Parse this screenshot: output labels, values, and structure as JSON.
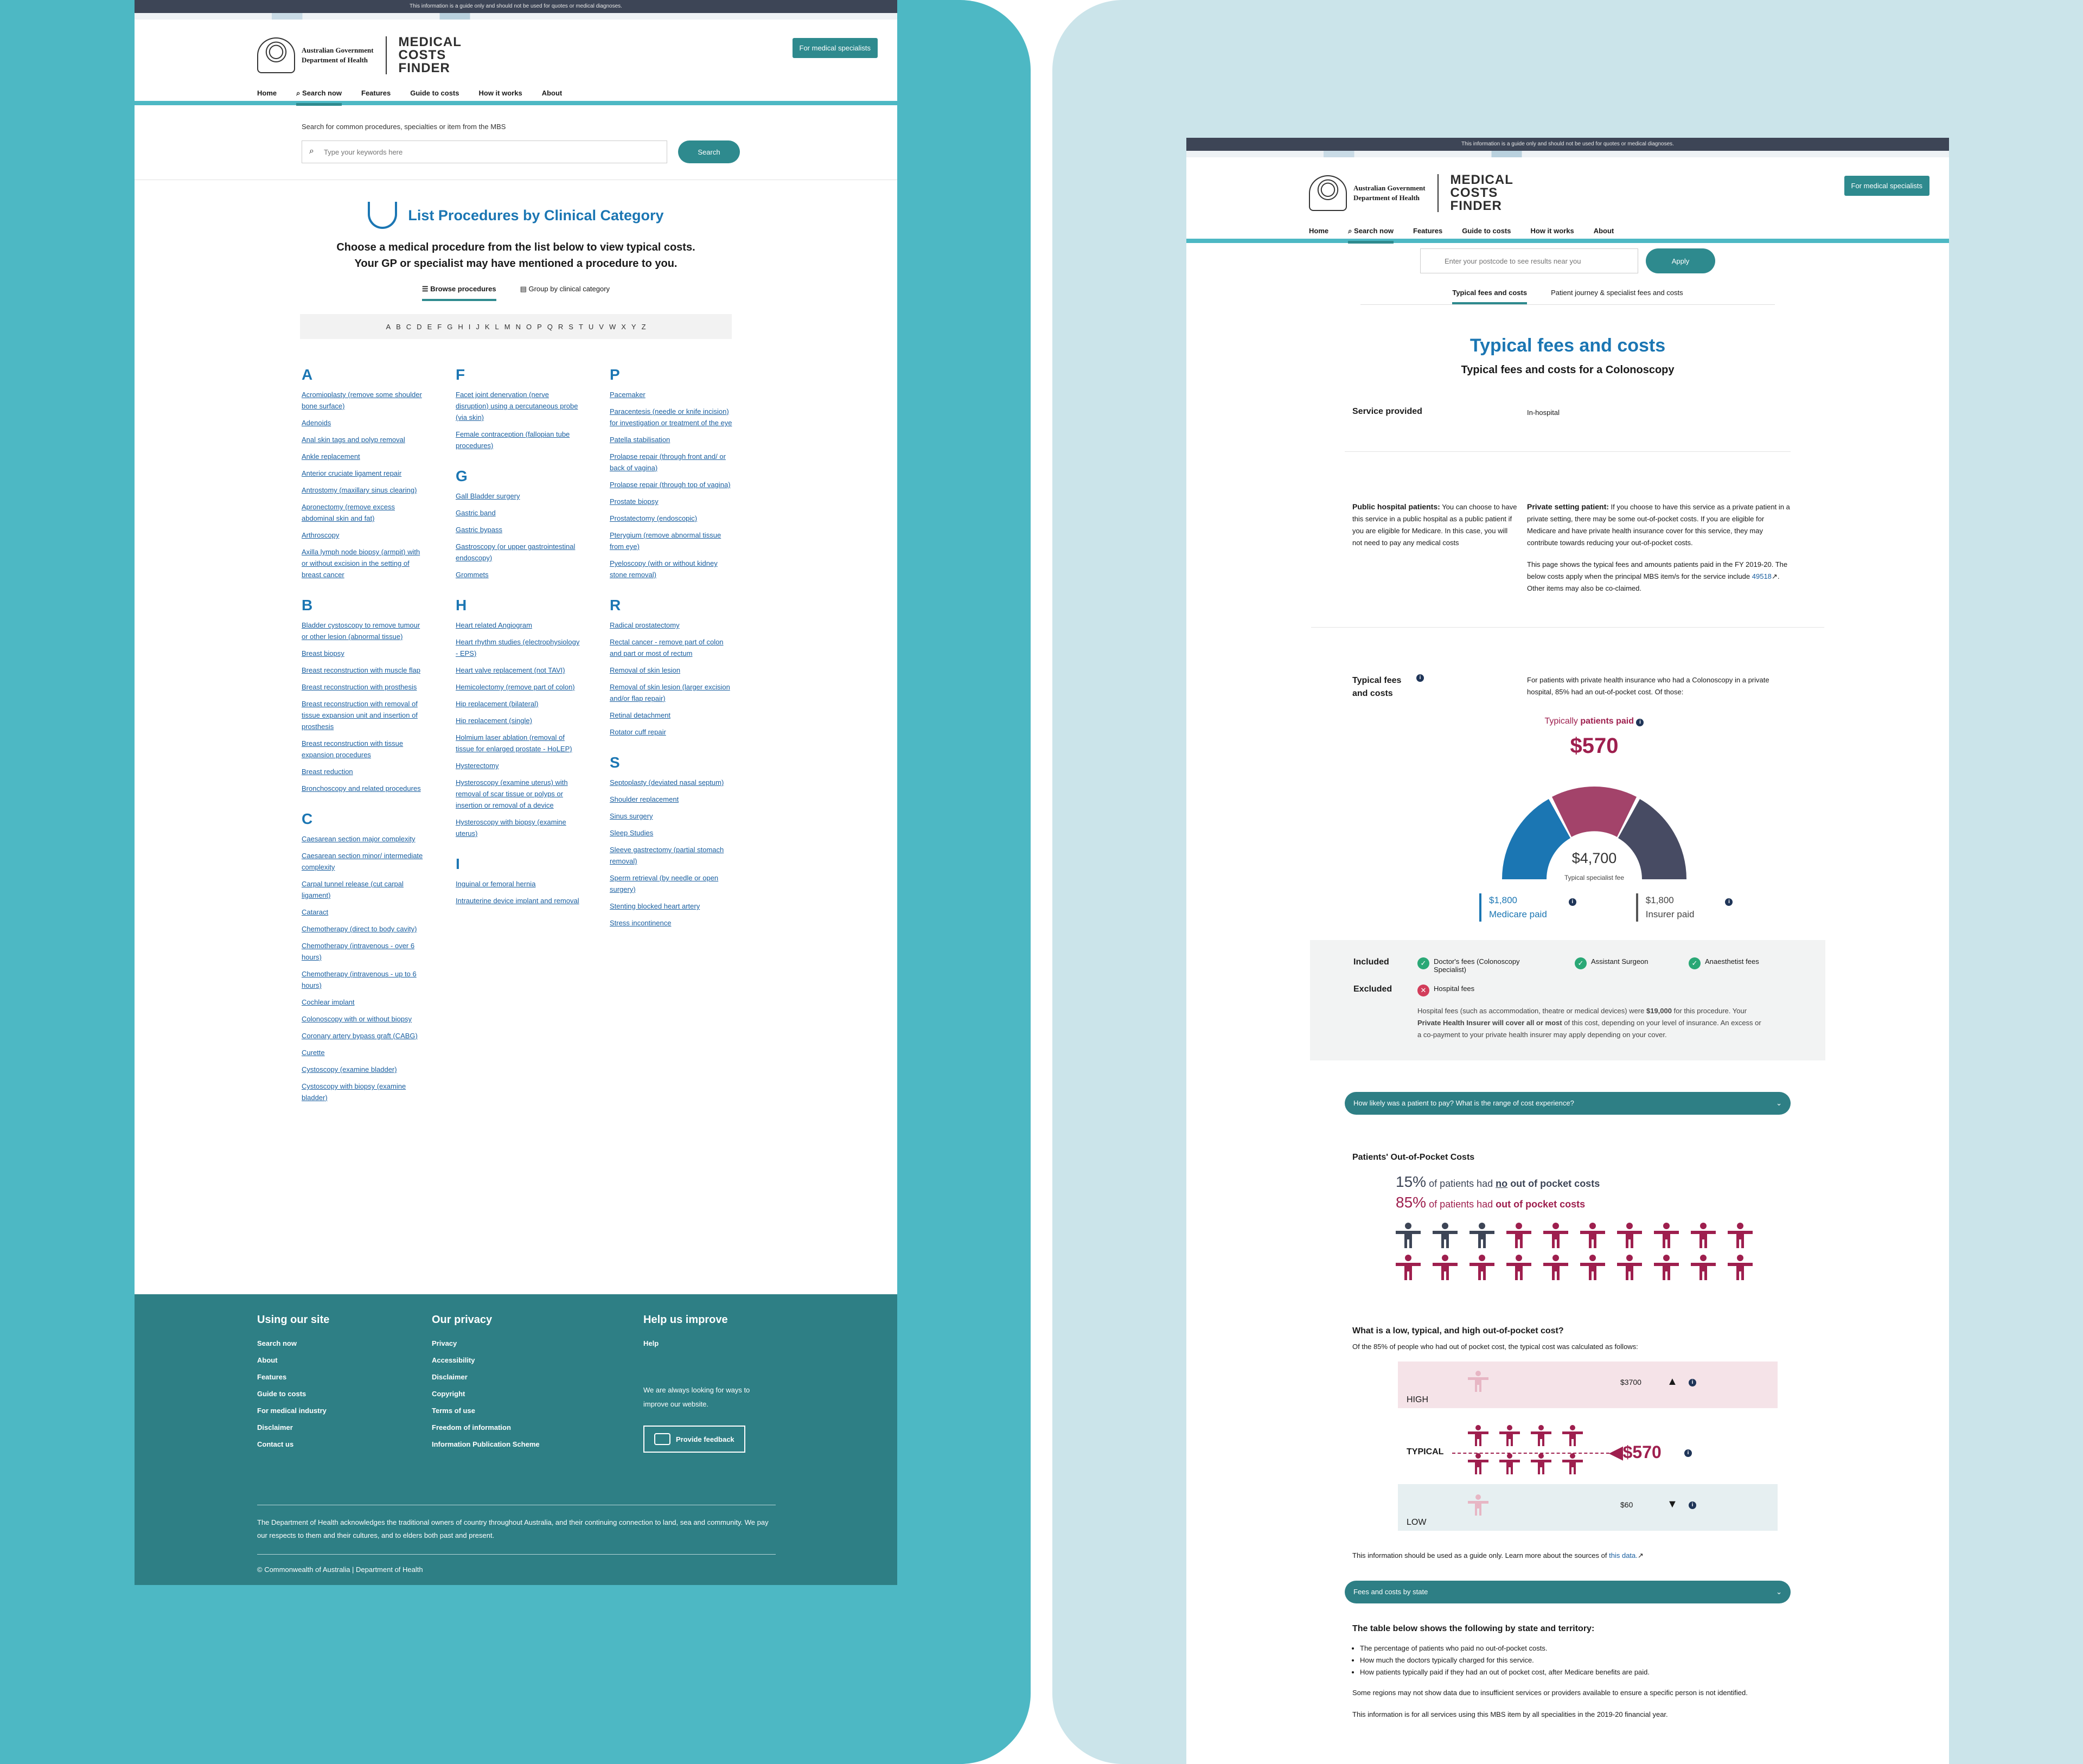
{
  "disclaimer": "This information is a guide only and should not be used for quotes or medical diagnoses.",
  "gov": {
    "line1": "Australian Government",
    "line2": "Department of Health"
  },
  "brand": {
    "l1": "MEDICAL",
    "l2": "COSTS",
    "l3": "FINDER"
  },
  "specialists": "For medical specialists",
  "nav": [
    "Home",
    "Search now",
    "Features",
    "Guide to costs",
    "How it works",
    "About"
  ],
  "left": {
    "search_hint": "Search for common procedures, specialties or item from the MBS",
    "search_placeholder": "Type your keywords here",
    "search_btn": "Search",
    "title": "List Procedures by Clinical Category",
    "intro1": "Choose a medical procedure from the list below to view typical costs.",
    "intro2": "Your GP or specialist may have mentioned a procedure to you.",
    "tab1": "Browse procedures",
    "tab2": "Group by clinical category",
    "alphabet": [
      "A",
      "B",
      "C",
      "D",
      "E",
      "F",
      "G",
      "H",
      "I",
      "J",
      "K",
      "L",
      "M",
      "N",
      "O",
      "P",
      "Q",
      "R",
      "S",
      "T",
      "U",
      "V",
      "W",
      "X",
      "Y",
      "Z"
    ],
    "columns": [
      [
        {
          "l": "A",
          "items": [
            "Acromioplasty (remove some shoulder bone surface)",
            "Adenoids",
            "Anal skin tags and polyp removal",
            "Ankle replacement",
            "Anterior cruciate ligament repair",
            "Antrostomy (maxillary sinus clearing)",
            "Apronectomy (remove excess abdominal skin and fat)",
            "Arthroscopy",
            "Axilla lymph node biopsy (armpit) with or without excision in the setting of breast cancer"
          ]
        },
        {
          "l": "B",
          "items": [
            "Bladder cystoscopy to remove tumour or other lesion (abnormal tissue)",
            "Breast biopsy",
            "Breast reconstruction with muscle flap",
            "Breast reconstruction with prosthesis",
            "Breast reconstruction with removal of tissue expansion unit and insertion of prosthesis",
            "Breast reconstruction with tissue expansion procedures",
            "Breast reduction",
            "Bronchoscopy and related procedures"
          ]
        },
        {
          "l": "C",
          "items": [
            "Caesarean section major complexity",
            "Caesarean section minor/ intermediate complexity",
            "Carpal tunnel release (cut carpal ligament)",
            "Cataract",
            "Chemotherapy (direct to body cavity)",
            "Chemotherapy (intravenous - over 6 hours)",
            "Chemotherapy (intravenous - up to 6 hours)",
            "Cochlear implant",
            "Colonoscopy with or without biopsy",
            "Coronary artery bypass graft (CABG)",
            "Curette",
            "Cystoscopy (examine bladder)",
            "Cystoscopy with biopsy (examine bladder)"
          ]
        }
      ],
      [
        {
          "l": "F",
          "items": [
            "Facet joint denervation (nerve disruption) using a percutaneous probe (via skin)",
            "Female contraception (fallopian tube procedures)"
          ]
        },
        {
          "l": "G",
          "items": [
            "Gall Bladder surgery",
            "Gastric band",
            "Gastric bypass",
            "Gastroscopy (or upper gastrointestinal endoscopy)",
            "Grommets"
          ]
        },
        {
          "l": "H",
          "items": [
            "Heart related Angiogram",
            "Heart rhythm studies (electrophysiology - EPS)",
            "Heart valve replacement (not TAVI)",
            "Hemicolectomy (remove part of colon)",
            "Hip replacement (bilateral)",
            "Hip replacement (single)",
            "Holmium laser ablation (removal of tissue for enlarged prostate - HoLEP)",
            "Hysterectomy",
            "Hysteroscopy (examine uterus) with removal of scar tissue or polyps or insertion or removal of a device",
            "Hysteroscopy with biopsy (examine uterus)"
          ]
        },
        {
          "l": "I",
          "items": [
            "Inguinal or femoral hernia",
            "Intrauterine device implant and removal"
          ]
        }
      ],
      [
        {
          "l": "P",
          "items": [
            "Pacemaker",
            "Paracentesis (needle or knife incision) for investigation or treatment of the eye",
            "Patella stabilisation",
            "Prolapse repair (through front and/ or back of vagina)",
            "Prolapse repair (through top of vagina)",
            "Prostate biopsy",
            "Prostatectomy (endoscopic)",
            "Pterygium (remove abnormal tissue from eye)",
            "Pyeloscopy (with or without kidney stone removal)"
          ]
        },
        {
          "l": "R",
          "items": [
            "Radical prostatectomy",
            "Rectal cancer - remove part of colon and part or most of rectum",
            "Removal of skin lesion",
            "Removal of skin lesion (larger excision and/or flap repair)",
            "Retinal detachment",
            "Rotator cuff repair"
          ]
        },
        {
          "l": "S",
          "items": [
            "Septoplasty (deviated nasal septum)",
            "Shoulder replacement",
            "Sinus surgery",
            "Sleep Studies",
            "Sleeve gastrectomy (partial stomach removal)",
            "Sperm retrieval (by needle or open surgery)",
            "Stenting blocked heart artery",
            "Stress incontinence"
          ]
        }
      ]
    ]
  },
  "footer": {
    "c1h": "Using our site",
    "c1": [
      "Search now",
      "About",
      "Features",
      "Guide to costs",
      "For medical industry",
      "Disclaimer",
      "Contact us"
    ],
    "c2h": "Our privacy",
    "c2": [
      "Privacy",
      "Accessibility",
      "Disclaimer",
      "Copyright",
      "Terms of use",
      "Freedom of information",
      "Information Publication Scheme"
    ],
    "c3h": "Help us improve",
    "c3": "Help",
    "c3desc": "We are always looking for ways to improve our website.",
    "feedback": "Provide feedback",
    "ack": "The Department of Health acknowledges the traditional owners of country throughout Australia, and their continuing connection to land, sea and community. We pay our respects to them and their cultures, and to elders both past and present.",
    "copy": "© Commonwealth of Australia | Department of Health"
  },
  "right": {
    "postcode_placeholder": "Enter your postcode to see results near you",
    "apply": "Apply",
    "tab1": "Typical fees and costs",
    "tab2": "Patient journey & specialist fees and costs",
    "title": "Typical fees and costs",
    "subtitle": "Typical fees and costs for a Colonoscopy",
    "service_label": "Service provided",
    "service_value": "In-hospital",
    "public_h": "Public hospital patients:",
    "public_t": "You can choose to have this service in a public hospital as a public patient if you are eligible for Medicare. In this case, you will not need to pay any medical costs",
    "private_h": "Private setting patient:",
    "private_t": "If you choose to have this service as a private patient in a private setting, there may be some out-of-pocket costs. If you are eligible for Medicare and have private health insurance cover for this service, they may contribute towards reducing your out-of-pocket costs.",
    "fy_t1": "This page shows the typical fees and amounts patients paid in the FY 2019-20. The below costs apply when the principal MBS item/s for the service include",
    "fy_item": "49518",
    "fy_t2": "Other items may also be co-claimed.",
    "tf_label": "Typical fees and costs",
    "tf_text": "For patients with private health insurance who had a Colonoscopy in a private hospital, 85% had an out-of-pocket cost. Of those:",
    "typ_a": "Typically",
    "typ_b": "patients paid",
    "typ_val": "$570",
    "fee_val": "$4,700",
    "fee_lbl": "Typical specialist fee",
    "medicare_val": "$1,800",
    "medicare_lbl": "Medicare paid",
    "insurer_val": "$1,800",
    "insurer_lbl": "Insurer paid",
    "included": "Included",
    "excluded": "Excluded",
    "inc_items": [
      "Doctor's fees (Colonoscopy Specialist)",
      "Assistant Surgeon",
      "Anaesthetist fees"
    ],
    "exc_item": "Hospital fees",
    "exc_t1": "Hospital fees (such as accommodation, theatre or medical devices) were",
    "exc_amt": "$19,000",
    "exc_t2": "for this procedure. Your",
    "exc_b": "Private Health Insurer will cover all or most",
    "exc_t3": "of this cost, depending on your level of insurance. An excess or a co-payment to your private health insurer may apply depending on your cover.",
    "acc1": "How likely was a patient to pay? What is the range of cost experience?",
    "oop_h": "Patients' Out-of-Pocket Costs",
    "p15": "15%",
    "p15t": "of patients had",
    "p15b": "no",
    "p15c": "out of pocket costs",
    "p85": "85%",
    "p85t": "of patients had",
    "p85b": "out of pocket costs",
    "people": {
      "no_cost": 3,
      "cost": 17
    },
    "range_h": "What is a low, typical, and high out-of-pocket cost?",
    "range_t": "Of the 85% of people who had out of pocket cost, the typical cost was calculated as follows:",
    "high": "HIGH",
    "high_v": "$3700",
    "typical": "TYPICAL",
    "typical_v": "$570",
    "low": "LOW",
    "low_v": "$60",
    "guide_t": "This information should be used as a guide only. Learn more about the sources of",
    "guide_link": "this data.",
    "acc2": "Fees and costs by state",
    "table_h": "The table below shows the following by state and territory:",
    "bullets": [
      "The percentage of patients who paid no out-of-pocket costs.",
      "How much the doctors typically charged for this service.",
      "How patients typically paid if they had an out of pocket cost, after Medicare benefits are paid."
    ],
    "regions": "Some regions may not show data due to insufficient services or providers available to ensure a specific person is not identified.",
    "services": "This information is for all services using this MBS item by all specialities in the 2019-20 financial year."
  },
  "colors": {
    "teal": "#2e8a8e",
    "blue": "#1b76b3",
    "maroon": "#9e1f4e",
    "navy": "#3d4556"
  }
}
